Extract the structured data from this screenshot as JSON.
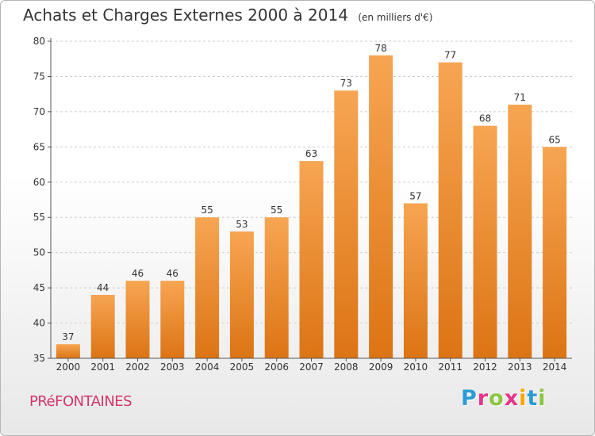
{
  "header": {
    "title": "Achats et Charges Externes 2000 à 2014",
    "subtitle": "(en milliers d'€)"
  },
  "footer": {
    "town": "PRéFONTAINES",
    "logo": [
      "P",
      "r",
      "o",
      "x",
      "i",
      "t",
      "i"
    ]
  },
  "colors": {
    "bar_top": "#f7a552",
    "bar_bottom": "#dc7414",
    "grid": "#cccccc",
    "axis": "#555555"
  },
  "chart_data": {
    "type": "bar",
    "title": "Achats et Charges Externes 2000 à 2014",
    "subtitle": "(en milliers d'€)",
    "xlabel": "",
    "ylabel": "",
    "categories": [
      "2000",
      "2001",
      "2002",
      "2003",
      "2004",
      "2005",
      "2006",
      "2007",
      "2008",
      "2009",
      "2010",
      "2011",
      "2012",
      "2013",
      "2014"
    ],
    "values": [
      37,
      44,
      46,
      46,
      55,
      53,
      55,
      63,
      73,
      78,
      57,
      77,
      68,
      71,
      65
    ],
    "ylim": [
      35,
      80
    ],
    "yticks": [
      35,
      40,
      45,
      50,
      55,
      60,
      65,
      70,
      75,
      80
    ],
    "grid": true,
    "legend": "none"
  }
}
